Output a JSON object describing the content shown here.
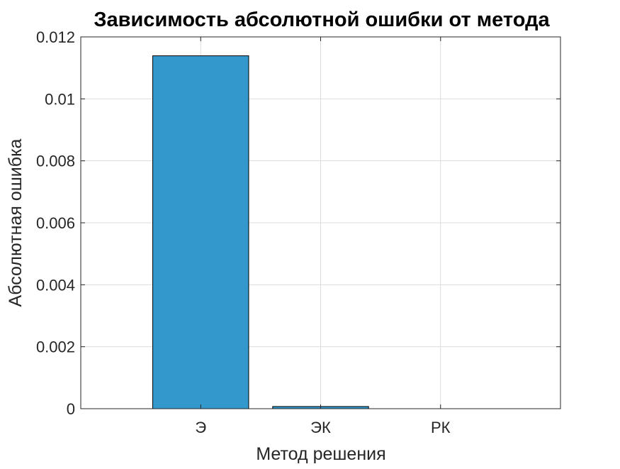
{
  "chart_data": {
    "type": "bar",
    "title": "Зависимость абсолютной ошибки от метода",
    "xlabel": "Метод решения",
    "ylabel": "Абсолютная ошибка",
    "categories": [
      "Э",
      "ЭК",
      "РК"
    ],
    "values": [
      0.01139,
      7e-05,
      3e-07
    ],
    "xlim": [
      0,
      4
    ],
    "ylim": [
      0,
      0.012
    ],
    "yticks": [
      0,
      0.002,
      0.004,
      0.006,
      0.008,
      0.01,
      0.012
    ],
    "ytick_labels": [
      "0",
      "0.002",
      "0.004",
      "0.006",
      "0.008",
      "0.01",
      "0.012"
    ],
    "xgrid_values": [
      1,
      2,
      3
    ],
    "grid": true,
    "bar_color": "#3399cc",
    "bar_edge_color": "#000000",
    "axis_color": "#262626",
    "grid_color": "#dcdcdc"
  }
}
